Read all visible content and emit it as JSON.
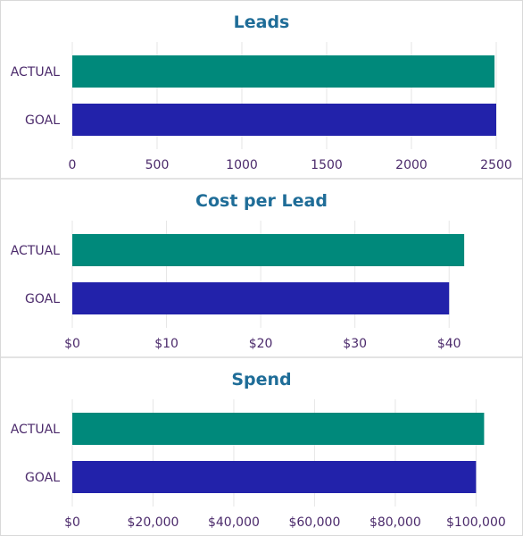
{
  "chart_data": [
    {
      "type": "bar",
      "orientation": "horizontal",
      "title": "Leads",
      "categories": [
        "ACTUAL",
        "GOAL"
      ],
      "values": [
        2490,
        2500
      ],
      "xlim": [
        0,
        2500
      ],
      "ticks": [
        0,
        500,
        1000,
        1500,
        2000,
        2500
      ],
      "tick_labels": [
        "0",
        "500",
        "1000",
        "1500",
        "2000",
        "2500"
      ],
      "grid": true,
      "colors": [
        "#00897b",
        "#2222aa"
      ]
    },
    {
      "type": "bar",
      "orientation": "horizontal",
      "title": "Cost per Lead",
      "categories": [
        "ACTUAL",
        "GOAL"
      ],
      "values": [
        41.6,
        40.0
      ],
      "xlim": [
        0,
        45
      ],
      "ticks": [
        0,
        10,
        20,
        30,
        40
      ],
      "tick_labels": [
        "$0",
        "$10",
        "$20",
        "$30",
        "$40"
      ],
      "grid": true,
      "colors": [
        "#00897b",
        "#2222aa"
      ]
    },
    {
      "type": "bar",
      "orientation": "horizontal",
      "title": "Spend",
      "categories": [
        "ACTUAL",
        "GOAL"
      ],
      "values": [
        102000,
        100000
      ],
      "xlim": [
        0,
        105000
      ],
      "ticks": [
        0,
        20000,
        40000,
        60000,
        80000,
        100000
      ],
      "tick_labels": [
        "$0",
        "$20,000",
        "$40,000",
        "$60,000",
        "$80,000",
        "$100,000"
      ],
      "grid": true,
      "colors": [
        "#00897b",
        "#2222aa"
      ]
    }
  ]
}
